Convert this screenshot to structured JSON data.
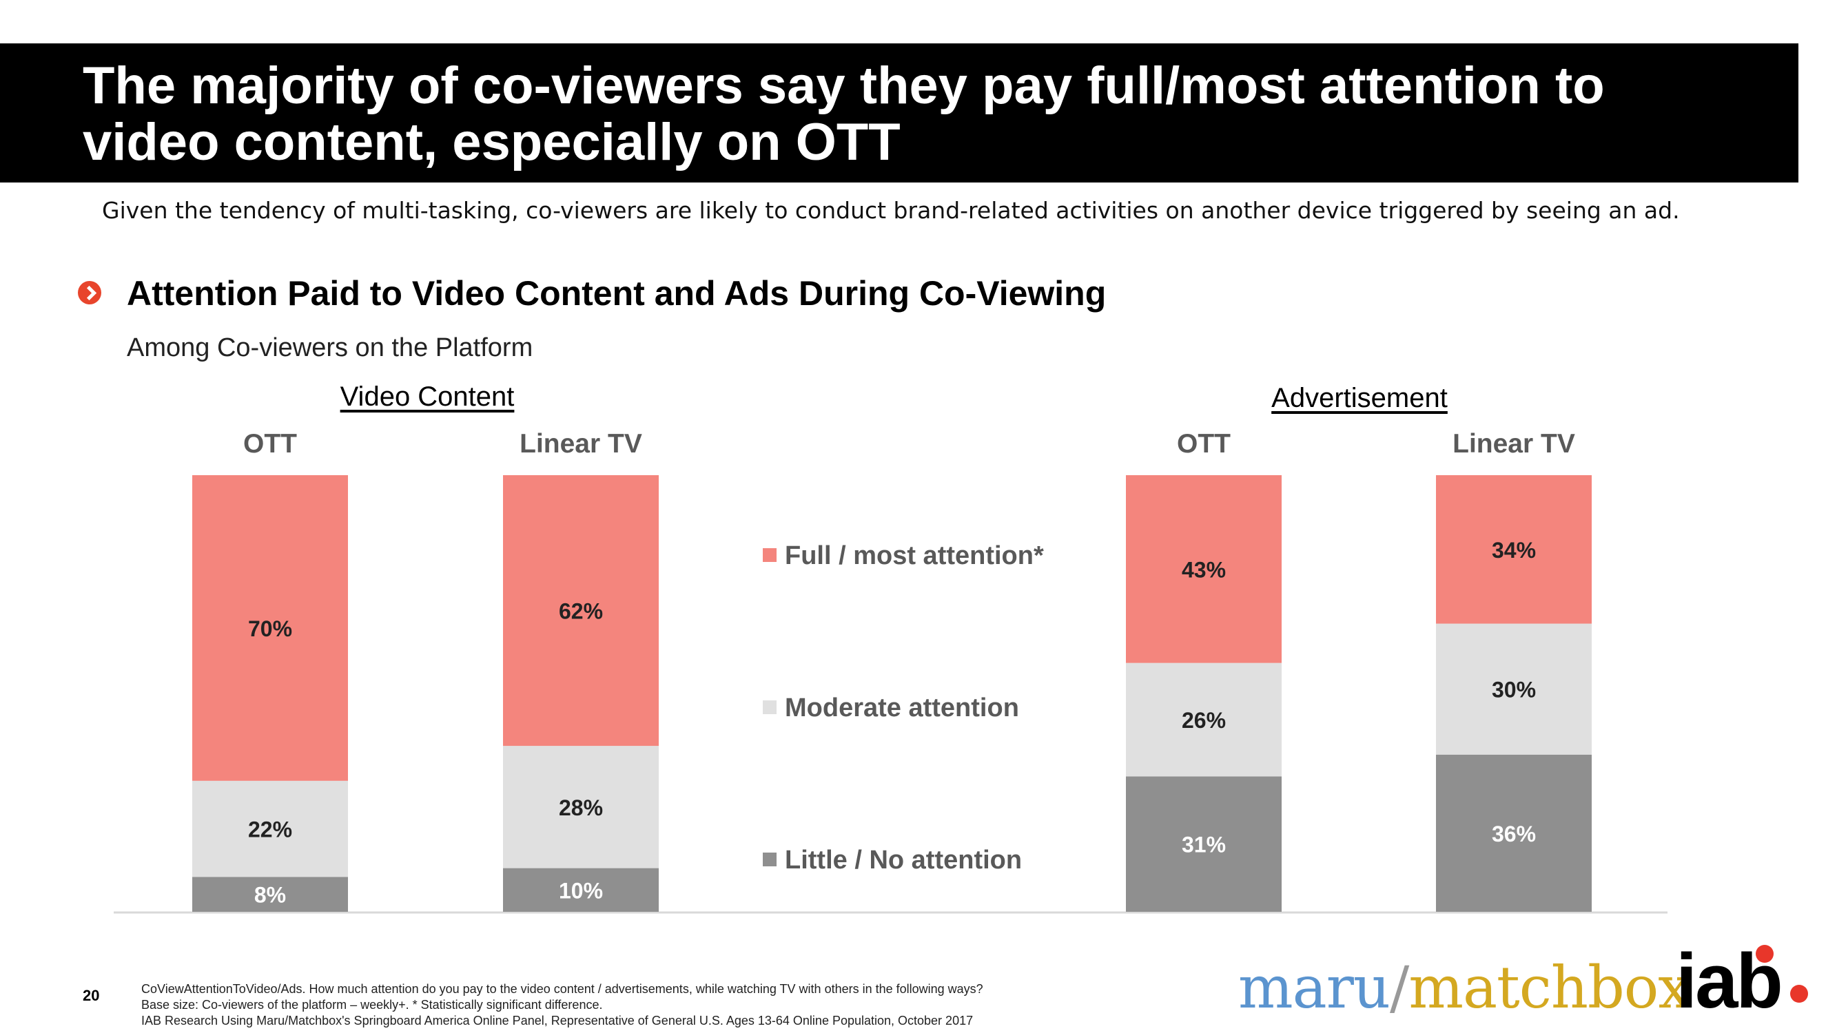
{
  "header": {
    "title_line1": "The majority of co-viewers say they pay full/most attention to",
    "title_line2": "video content, especially on OTT",
    "subtitle": "Given the tendency of multi-tasking, co-viewers are likely to conduct brand-related activities on another device triggered by seeing an ad."
  },
  "section": {
    "title": "Attention Paid to Video Content and Ads During Co-Viewing",
    "subtitle": "Among Co-viewers on the Platform"
  },
  "groups": {
    "video": "Video Content ",
    "ad": "Advertisement"
  },
  "platforms": {
    "video_ott": "OTT",
    "video_linear": "Linear TV",
    "ad_ott": "OTT",
    "ad_linear": "Linear TV"
  },
  "legend": {
    "full": "Full / most attention*",
    "moderate": "Moderate attention",
    "little": "Little / No attention"
  },
  "colors": {
    "full": "#f4857d",
    "moderate": "#e0e0e0",
    "little": "#8f8f8f",
    "header_bg": "#000000",
    "bullet": "#e8452c"
  },
  "chart_data": {
    "type": "bar",
    "stacked": true,
    "normalized": true,
    "groups": [
      "Video Content",
      "Advertisement"
    ],
    "categories": [
      "OTT",
      "Linear TV",
      "OTT",
      "Linear TV"
    ],
    "series": [
      {
        "name": "Little / No attention",
        "values": [
          8,
          10,
          31,
          36
        ],
        "labels": [
          "8%",
          "10%",
          "31%",
          "36%"
        ]
      },
      {
        "name": "Moderate attention",
        "values": [
          22,
          28,
          26,
          30
        ],
        "labels": [
          "22%",
          "28%",
          "26%",
          "30%"
        ]
      },
      {
        "name": "Full / most attention*",
        "values": [
          70,
          62,
          43,
          34
        ],
        "labels": [
          "70%",
          "62%",
          "43%",
          "34%"
        ]
      }
    ],
    "legend": "center",
    "grid": false
  },
  "footer": {
    "page_number": "20",
    "note1": "CoViewAttentionToVideo/Ads. How much attention do you pay to the video content / advertisements, while watching TV with others in the following ways?",
    "note2": "Base size: Co-viewers of the platform – weekly+. * Statistically significant difference.",
    "note3": "IAB Research Using Maru/Matchbox's Springboard America Online Panel, Representative of General U.S. Ages 13-64 Online Population, October 2017"
  },
  "logos": {
    "maru": "maru",
    "slash": "/",
    "matchbox": "matchbox",
    "iab": "iab"
  }
}
